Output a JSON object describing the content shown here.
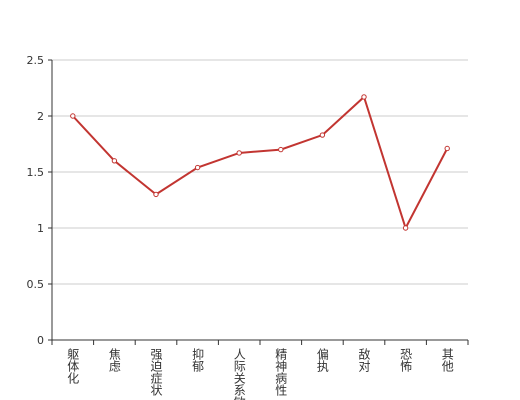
{
  "chart_data": {
    "type": "line",
    "categories": [
      "躯体化",
      "焦虑",
      "强迫症状",
      "抑郁",
      "人际关系敏感",
      "精神病性",
      "偏执",
      "敌对",
      "恐怖",
      "其他"
    ],
    "values": [
      2.0,
      1.6,
      1.3,
      1.54,
      1.67,
      1.7,
      1.83,
      2.17,
      1.0,
      1.71
    ],
    "color": "#c23531",
    "ylim": [
      0,
      2.5
    ],
    "yticks": [
      0,
      0.5,
      1,
      1.5,
      2,
      2.5
    ],
    "grid": true
  }
}
